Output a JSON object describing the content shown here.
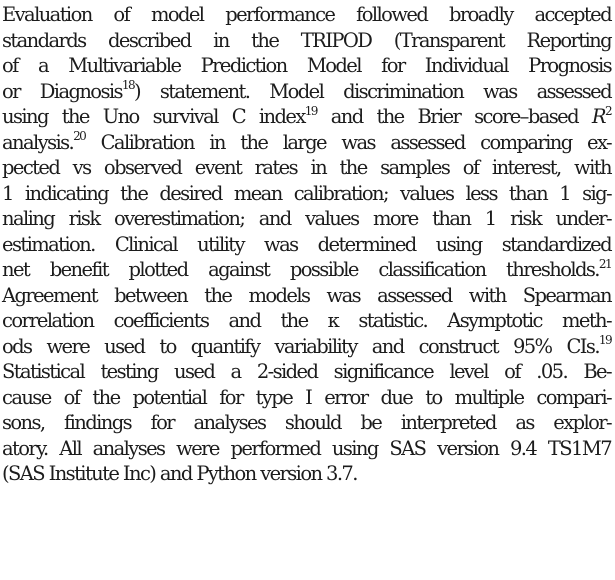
{
  "paragraph": {
    "lines": [
      "Evaluation of model performance followed broadly accepted",
      "standards described in the TRIPOD (Transparent Reporting",
      "of a Multivariable Prediction Model for Individual Prognosis",
      "or Diagnosis",
      "18",
      ") statement. Model discrimination was assessed",
      "using the Uno survival C index",
      "19",
      " and the Brier score–based ",
      "R",
      "2",
      "analysis.",
      "20",
      " Calibration in the large was assessed comparing ex-",
      "pected vs observed event rates in the samples of interest, with",
      "1 indicating the desired mean calibration; values less than 1 sig-",
      "naling risk overestimation; and values more than 1 risk under-",
      "estimation. Clinical utility was determined using standardized",
      "net benefit plotted against possible classification thresholds.",
      "21",
      "Agreement between the models was assessed with Spearman",
      "correlation coefficients and the κ statistic. Asymptotic meth-",
      "ods were used to quantify variability and construct 95% CIs.",
      "19",
      "Statistical testing used a 2-sided significance level of .05. Be-",
      "cause of the potential for type I error due to multiple compari-",
      "sons, findings for analyses should be interpreted as explor-",
      "atory. All analyses were performed using SAS version 9.4 TS1M7",
      "(SAS Institute Inc) and Python version 3.7."
    ]
  }
}
